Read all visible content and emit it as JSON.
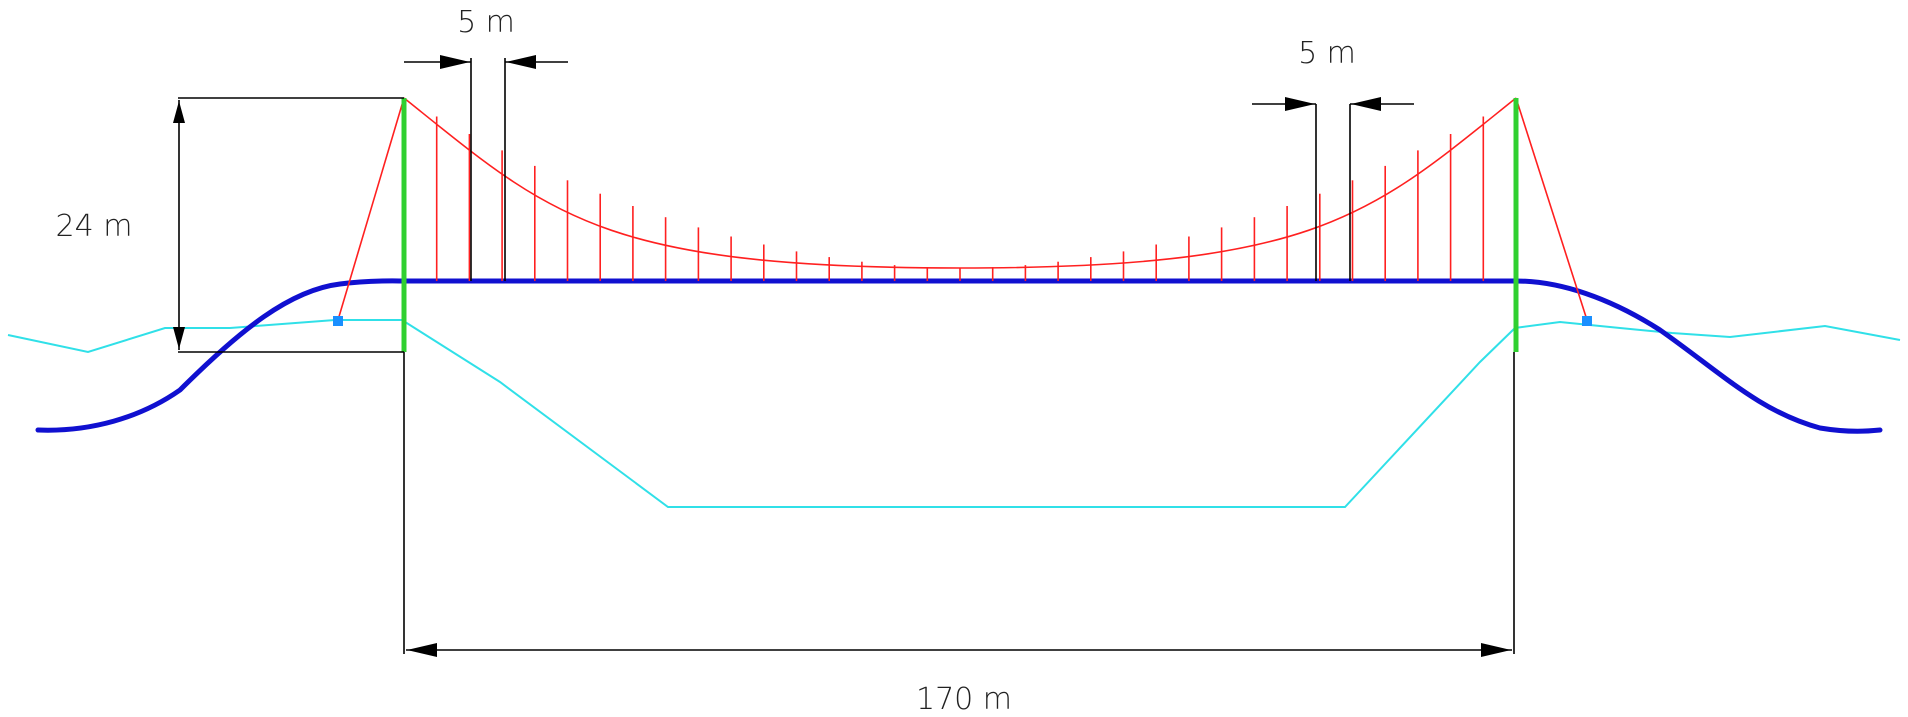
{
  "labels": {
    "hanger_spacing_left": "5 m",
    "hanger_spacing_right": "5 m",
    "tower_height": "24 m",
    "main_span": "170 m"
  },
  "colors": {
    "cable": "#ff2020",
    "deck": "#1010d0",
    "tower": "#30d030",
    "water_profile": "#30e0e8",
    "anchor": "#1a8fff",
    "dimension": "#000000",
    "text": "#222222"
  }
}
